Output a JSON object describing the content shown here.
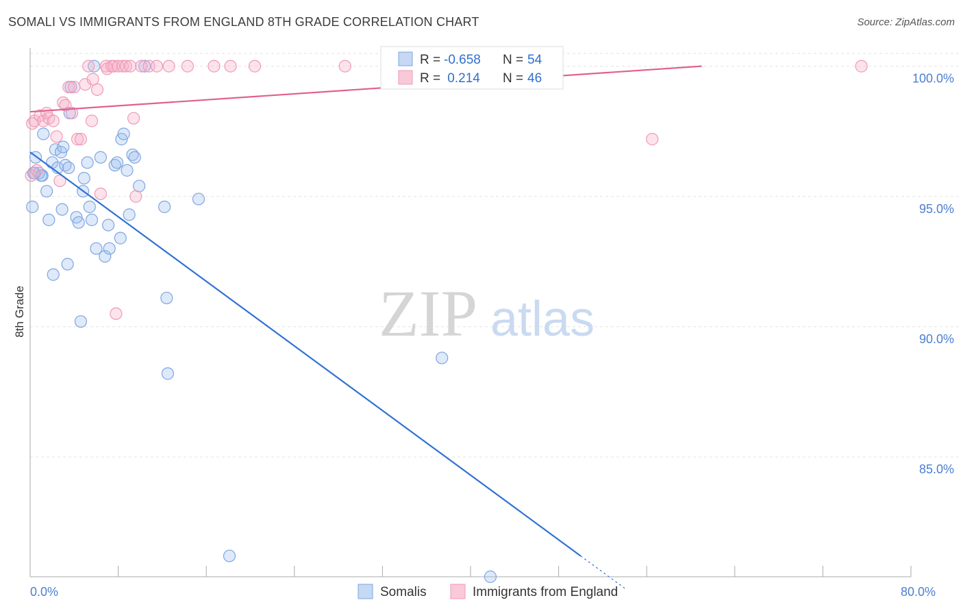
{
  "title": "SOMALI VS IMMIGRANTS FROM ENGLAND 8TH GRADE CORRELATION CHART",
  "source": "Source: ZipAtlas.com",
  "watermark": {
    "zip": "ZIP",
    "atlas": "atlas"
  },
  "chart_data": {
    "type": "scatter",
    "title": "SOMALI VS IMMIGRANTS FROM ENGLAND 8TH GRADE CORRELATION CHART",
    "xlabel": "",
    "ylabel": "8th Grade",
    "xlim": [
      0,
      80
    ],
    "ylim": [
      80.4,
      100.7
    ],
    "x_tick_labels": [
      {
        "value": 0,
        "label": "0.0%"
      },
      {
        "value": 80,
        "label": "80.0%"
      }
    ],
    "x_minor_ticks": [
      0,
      8,
      16,
      24,
      32,
      40,
      48,
      56,
      64,
      72,
      80
    ],
    "y_ticks": [
      {
        "value": 100,
        "label": "100.0%"
      },
      {
        "value": 95,
        "label": "95.0%"
      },
      {
        "value": 90,
        "label": "90.0%"
      },
      {
        "value": 85,
        "label": "85.0%"
      }
    ],
    "grid": true,
    "legend": {
      "position": "top-center",
      "entries": [
        {
          "r_label": "R =",
          "r_value": "-0.658",
          "n_label": "N =",
          "n_value": "54"
        },
        {
          "r_label": "R =",
          "r_value": " 0.214",
          "n_label": "N =",
          "n_value": "46"
        }
      ]
    },
    "series": [
      {
        "name": "Somalis",
        "color": "#8fb4e8",
        "line_color": "#2f72d3",
        "trend": {
          "x": [
            0,
            50
          ],
          "y": [
            96.7,
            81.2
          ],
          "dashed_to_x": 54
        },
        "points": [
          [
            0.2,
            94.6
          ],
          [
            0.3,
            95.9
          ],
          [
            0.5,
            96.5
          ],
          [
            1.1,
            95.8
          ],
          [
            1.2,
            97.4
          ],
          [
            1.5,
            95.2
          ],
          [
            1.7,
            94.1
          ],
          [
            2.0,
            96.3
          ],
          [
            2.1,
            92.0
          ],
          [
            2.3,
            96.8
          ],
          [
            2.5,
            96.1
          ],
          [
            2.8,
            96.7
          ],
          [
            2.9,
            94.5
          ],
          [
            3.0,
            96.9
          ],
          [
            3.2,
            96.2
          ],
          [
            3.4,
            92.4
          ],
          [
            3.5,
            96.1
          ],
          [
            3.6,
            98.2
          ],
          [
            3.7,
            99.2
          ],
          [
            4.2,
            94.2
          ],
          [
            4.4,
            94.0
          ],
          [
            4.6,
            90.2
          ],
          [
            4.8,
            95.2
          ],
          [
            4.9,
            95.7
          ],
          [
            5.2,
            96.3
          ],
          [
            5.4,
            94.6
          ],
          [
            5.6,
            94.1
          ],
          [
            5.8,
            100.0
          ],
          [
            6.0,
            93.0
          ],
          [
            6.4,
            96.5
          ],
          [
            6.8,
            92.7
          ],
          [
            7.1,
            93.9
          ],
          [
            7.2,
            93.0
          ],
          [
            7.7,
            96.2
          ],
          [
            7.9,
            96.3
          ],
          [
            8.2,
            93.4
          ],
          [
            8.3,
            97.2
          ],
          [
            8.5,
            97.4
          ],
          [
            8.8,
            96.0
          ],
          [
            9.0,
            94.3
          ],
          [
            9.3,
            96.6
          ],
          [
            9.5,
            96.5
          ],
          [
            9.9,
            95.4
          ],
          [
            10.4,
            100.0
          ],
          [
            12.2,
            94.6
          ],
          [
            12.4,
            91.1
          ],
          [
            12.5,
            88.2
          ],
          [
            15.3,
            94.9
          ],
          [
            18.1,
            81.2
          ],
          [
            37.4,
            88.8
          ],
          [
            41.8,
            80.4
          ],
          [
            0.8,
            95.9
          ],
          [
            1.0,
            95.8
          ],
          [
            0.4,
            95.9
          ]
        ]
      },
      {
        "name": "Immigrants from England",
        "color": "#f2a7c0",
        "line_color": "#e0608e",
        "trend": {
          "x": [
            0,
            61
          ],
          "y": [
            98.25,
            100.0
          ]
        },
        "points": [
          [
            0.1,
            95.8
          ],
          [
            0.2,
            97.8
          ],
          [
            0.4,
            97.9
          ],
          [
            0.6,
            96.0
          ],
          [
            0.9,
            98.1
          ],
          [
            1.2,
            97.9
          ],
          [
            1.5,
            98.2
          ],
          [
            1.7,
            98.0
          ],
          [
            2.1,
            97.9
          ],
          [
            2.4,
            97.3
          ],
          [
            2.7,
            95.6
          ],
          [
            3.0,
            98.6
          ],
          [
            3.2,
            98.5
          ],
          [
            3.5,
            99.2
          ],
          [
            3.8,
            98.2
          ],
          [
            4.0,
            99.2
          ],
          [
            4.3,
            97.2
          ],
          [
            4.6,
            97.2
          ],
          [
            5.0,
            99.3
          ],
          [
            5.3,
            100.0
          ],
          [
            5.6,
            97.9
          ],
          [
            5.7,
            99.5
          ],
          [
            6.1,
            99.1
          ],
          [
            6.4,
            95.1
          ],
          [
            6.9,
            100.0
          ],
          [
            7.0,
            99.9
          ],
          [
            7.4,
            100.0
          ],
          [
            7.6,
            100.0
          ],
          [
            7.8,
            90.5
          ],
          [
            8.0,
            100.0
          ],
          [
            8.4,
            100.0
          ],
          [
            8.7,
            100.0
          ],
          [
            9.1,
            100.0
          ],
          [
            9.4,
            98.0
          ],
          [
            9.6,
            95.0
          ],
          [
            10.1,
            100.0
          ],
          [
            10.8,
            100.0
          ],
          [
            11.5,
            100.0
          ],
          [
            12.6,
            100.0
          ],
          [
            14.3,
            100.0
          ],
          [
            16.7,
            100.0
          ],
          [
            18.2,
            100.0
          ],
          [
            20.4,
            100.0
          ],
          [
            28.6,
            100.0
          ],
          [
            56.5,
            97.2
          ],
          [
            75.5,
            100.0
          ]
        ]
      }
    ]
  },
  "bottom_legend": [
    {
      "label": "Somalis"
    },
    {
      "label": "Immigrants from England"
    }
  ]
}
